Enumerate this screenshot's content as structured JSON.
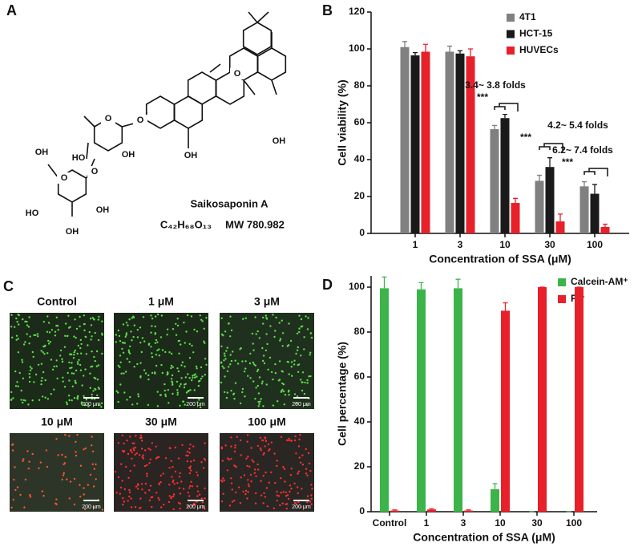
{
  "panel_labels": [
    "A",
    "B",
    "C",
    "D"
  ],
  "structure": {
    "name": "Saikosaponin A",
    "formula": "C₄₂H₆₈O₁₃",
    "mw": "MW 780.982",
    "atoms": [
      "O",
      "O",
      "HO",
      "OH",
      "O",
      "OH",
      "O",
      "HO",
      "OH",
      "OH",
      "OH",
      "O",
      "OH"
    ]
  },
  "microscopy": {
    "labels": [
      "Control",
      "1 μM",
      "3 μM",
      "10 μM",
      "30 μM",
      "100 μM"
    ],
    "scale_bar": "200 μm"
  },
  "chart_data": [
    {
      "type": "bar",
      "xlabel": "Concentration of SSA (μM)",
      "ylabel": "Cell viability (%)",
      "categories": [
        "1",
        "3",
        "10",
        "30",
        "100"
      ],
      "series": [
        {
          "name": "4T1",
          "color": "#808080",
          "values": [
            101,
            98.5,
            56.5,
            28.5,
            25.5
          ],
          "errors": [
            3,
            3,
            2,
            3,
            2.5
          ]
        },
        {
          "name": "HCT-15",
          "color": "#1a1a1a",
          "values": [
            96.5,
            97.5,
            62.5,
            36,
            21.5
          ],
          "errors": [
            1.5,
            1.5,
            2,
            5,
            5
          ]
        },
        {
          "name": "HUVECs",
          "color": "#e8202a",
          "values": [
            98.5,
            96,
            16.5,
            6.5,
            3.5
          ],
          "errors": [
            4,
            4,
            2.5,
            4,
            1.5
          ]
        }
      ],
      "ylim": [
        0,
        120
      ],
      "yticks": [
        0,
        20,
        40,
        60,
        80,
        100,
        120
      ],
      "annotations": [
        "3.4~ 3.8 folds",
        "***",
        "4.2~ 5.4 folds",
        "***",
        "6.2~ 7.4 folds",
        "***"
      ]
    },
    {
      "type": "bar",
      "xlabel": "Concentration of SSA (μM)",
      "ylabel": "Cell percentage (%)",
      "categories": [
        "Control",
        "1",
        "3",
        "10",
        "30",
        "100"
      ],
      "series": [
        {
          "name": "Calcein-AM⁺",
          "color": "#3cb44a",
          "values": [
            99.5,
            99,
            99.5,
            10,
            0,
            0
          ],
          "errors": [
            5,
            3,
            4,
            2.5,
            0,
            0
          ]
        },
        {
          "name": "PI⁺",
          "color": "#e8202a",
          "values": [
            0.5,
            1,
            0.5,
            89.5,
            100,
            100
          ],
          "errors": [
            0.3,
            0.3,
            0.3,
            3.5,
            0,
            0
          ]
        }
      ],
      "ylim": [
        0,
        105
      ],
      "yticks": [
        0,
        20,
        40,
        60,
        80,
        100
      ]
    }
  ]
}
